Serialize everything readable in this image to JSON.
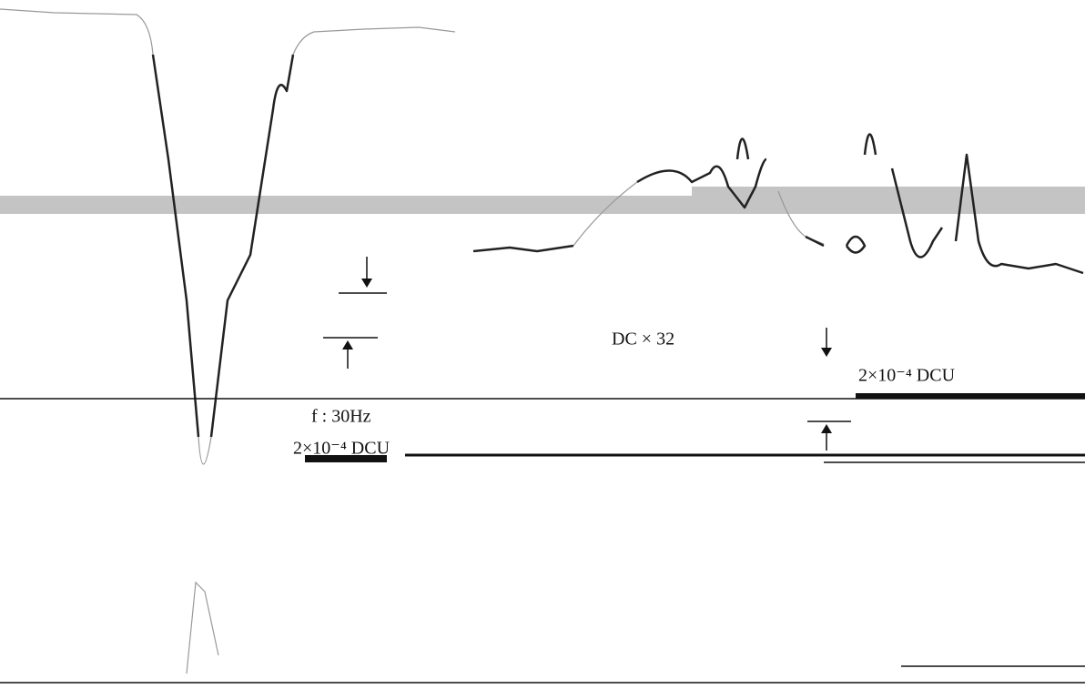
{
  "labels": {
    "magnification": "DC × 32",
    "scale_right": "2×10⁻⁴ DCU",
    "frequency": "f : 30Hz",
    "scale_left": "2×10⁻⁴ DCU"
  }
}
